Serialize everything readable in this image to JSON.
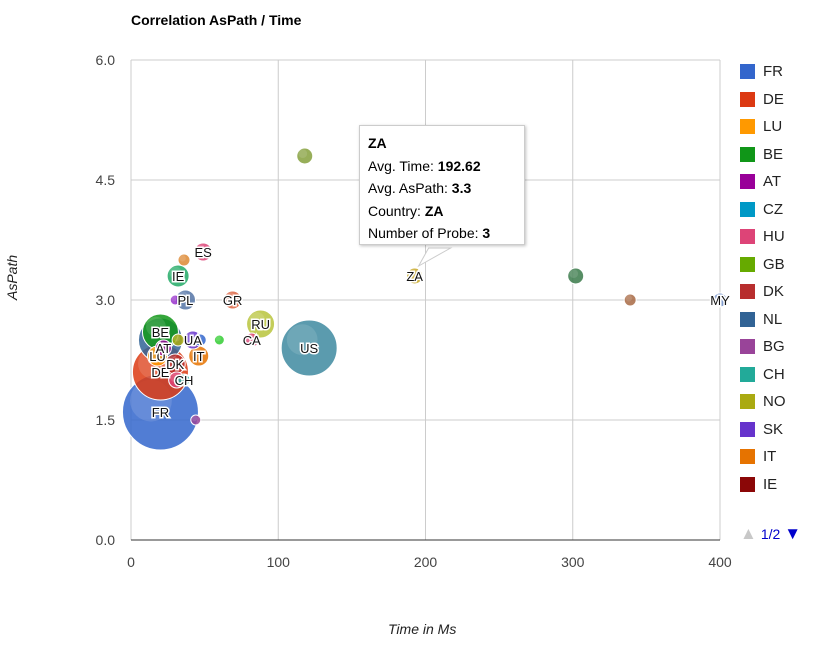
{
  "chart_data": {
    "type": "bubble",
    "title": "Correlation AsPath / Time",
    "xlabel": "Time in Ms",
    "ylabel": "AsPath",
    "xlim": [
      0,
      400
    ],
    "ylim": [
      0,
      6
    ],
    "x_ticks": [
      "0",
      "100",
      "200",
      "300",
      "400"
    ],
    "y_ticks": [
      "0.0",
      "1.5",
      "3.0",
      "4.5",
      "6.0"
    ],
    "grid": true,
    "legend_position": "right",
    "legend": [
      {
        "name": "FR",
        "color": "#3366cc"
      },
      {
        "name": "DE",
        "color": "#dc3912"
      },
      {
        "name": "LU",
        "color": "#ff9900"
      },
      {
        "name": "BE",
        "color": "#109618"
      },
      {
        "name": "AT",
        "color": "#990099"
      },
      {
        "name": "CZ",
        "color": "#0099c6"
      },
      {
        "name": "HU",
        "color": "#dd4477"
      },
      {
        "name": "GB",
        "color": "#66aa00"
      },
      {
        "name": "DK",
        "color": "#b82e2e"
      },
      {
        "name": "NL",
        "color": "#316395"
      },
      {
        "name": "BG",
        "color": "#994499"
      },
      {
        "name": "CH",
        "color": "#22aa99"
      },
      {
        "name": "NO",
        "color": "#aaaa11"
      },
      {
        "name": "SK",
        "color": "#6633cc"
      },
      {
        "name": "IT",
        "color": "#e67300"
      },
      {
        "name": "IE",
        "color": "#8b0707"
      }
    ],
    "points": [
      {
        "label": "FR",
        "x": 20,
        "y": 1.6,
        "size": 38,
        "color": "#3366cc"
      },
      {
        "label": "",
        "x": 44,
        "y": 1.5,
        "size": 5,
        "color": "#994499"
      },
      {
        "label": "DE",
        "x": 20,
        "y": 2.1,
        "size": 28,
        "color": "#dc3912"
      },
      {
        "label": "",
        "x": 20,
        "y": 2.5,
        "size": 22,
        "color": "#316395"
      },
      {
        "label": "BE",
        "x": 20,
        "y": 2.6,
        "size": 18,
        "color": "#109618"
      },
      {
        "label": "LU",
        "x": 18,
        "y": 2.3,
        "size": 10,
        "color": "#ff9900"
      },
      {
        "label": "AT",
        "x": 22,
        "y": 2.4,
        "size": 8,
        "color": "#990099"
      },
      {
        "label": "DK",
        "x": 30,
        "y": 2.2,
        "size": 10,
        "color": "#b82e2e"
      },
      {
        "label": "CH",
        "x": 36,
        "y": 2.0,
        "size": 6,
        "color": "#22aa99"
      },
      {
        "label": "",
        "x": 31,
        "y": 2.0,
        "size": 8,
        "color": "#dd4477"
      },
      {
        "label": "IT",
        "x": 46,
        "y": 2.3,
        "size": 10,
        "color": "#e67300"
      },
      {
        "label": "UA",
        "x": 42,
        "y": 2.5,
        "size": 9,
        "color": "#6633cc"
      },
      {
        "label": "",
        "x": 32,
        "y": 2.5,
        "size": 6,
        "color": "#aaaa11"
      },
      {
        "label": "",
        "x": 47,
        "y": 2.5,
        "size": 6,
        "color": "#3366cc"
      },
      {
        "label": "",
        "x": 60,
        "y": 2.5,
        "size": 5,
        "color": "#33cc33"
      },
      {
        "label": "PL",
        "x": 37,
        "y": 3.0,
        "size": 10,
        "color": "#5574a6"
      },
      {
        "label": "",
        "x": 30,
        "y": 3.0,
        "size": 5,
        "color": "#9933cc"
      },
      {
        "label": "IE",
        "x": 32,
        "y": 3.3,
        "size": 11,
        "color": "#22aa66"
      },
      {
        "label": "",
        "x": 36,
        "y": 3.5,
        "size": 6,
        "color": "#dd8833"
      },
      {
        "label": "ES",
        "x": 49,
        "y": 3.6,
        "size": 9,
        "color": "#dd4477"
      },
      {
        "label": "GR",
        "x": 69,
        "y": 3.0,
        "size": 9,
        "color": "#dd6644"
      },
      {
        "label": "RU",
        "x": 88,
        "y": 2.7,
        "size": 14,
        "color": "#b8c43c"
      },
      {
        "label": "CA",
        "x": 82,
        "y": 2.5,
        "size": 7,
        "color": "#dd4477"
      },
      {
        "label": "US",
        "x": 121,
        "y": 2.4,
        "size": 28,
        "color": "#3e8aa0"
      },
      {
        "label": "",
        "x": 118,
        "y": 4.8,
        "size": 8,
        "color": "#85a03c"
      },
      {
        "label": "ZA",
        "x": 192.62,
        "y": 3.3,
        "size": 8,
        "color": "#c8a828"
      },
      {
        "label": "",
        "x": 302,
        "y": 3.3,
        "size": 8,
        "color": "#3a7a4a"
      },
      {
        "label": "",
        "x": 339,
        "y": 3.0,
        "size": 6,
        "color": "#a86a44"
      },
      {
        "label": "MY",
        "x": 400,
        "y": 3.0,
        "size": 7,
        "color": "#6a8ac4"
      }
    ],
    "tooltip": {
      "title": "ZA",
      "lines": [
        {
          "label": "Avg. Time: ",
          "value": "192.62"
        },
        {
          "label": "Avg. AsPath: ",
          "value": "3.3"
        },
        {
          "label": "Country: ",
          "value": "ZA"
        },
        {
          "label": "Number of Probe: ",
          "value": "3"
        }
      ]
    },
    "pager": {
      "text": "1/2",
      "prev_icon": "triangle-up-icon",
      "next_icon": "triangle-down-icon"
    }
  }
}
